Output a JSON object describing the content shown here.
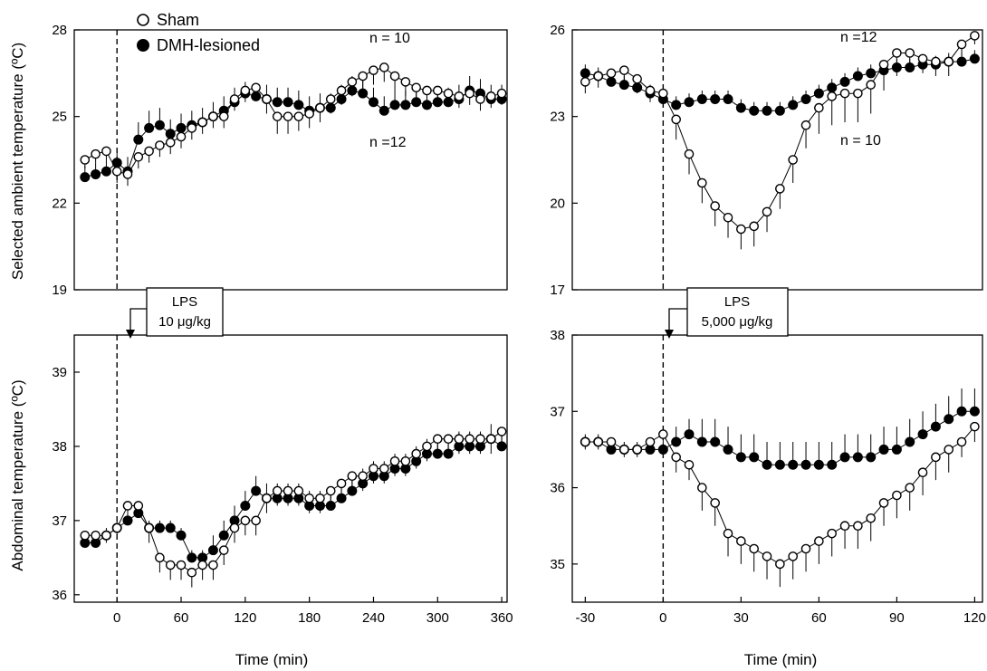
{
  "legend": [
    {
      "label": "Sham",
      "marker": "open-circle"
    },
    {
      "label": "DMH-lesioned",
      "marker": "filled-circle"
    }
  ],
  "colors": {
    "ink": "#000000",
    "background": "#ffffff"
  },
  "chart_data": [
    {
      "id": "top-left",
      "type": "line",
      "ylabel": "Selected ambient temperature (ºC)",
      "xlabel": "",
      "ylim": [
        19,
        28
      ],
      "yticks": [
        19,
        22,
        25,
        28
      ],
      "xlim": [
        -40,
        365
      ],
      "xticks": [],
      "vline_x": 0,
      "annotations": [
        {
          "text": "n = 10",
          "x": 242,
          "y": 27.5
        },
        {
          "text": "n =12",
          "x": 242,
          "y": 23.9
        }
      ],
      "series": [
        {
          "name": "Sham",
          "marker": "open",
          "x": [
            -30,
            -20,
            -10,
            0,
            10,
            20,
            30,
            40,
            50,
            60,
            70,
            80,
            90,
            100,
            110,
            120,
            130,
            140,
            150,
            160,
            170,
            180,
            190,
            200,
            210,
            220,
            230,
            240,
            250,
            260,
            270,
            280,
            290,
            300,
            310,
            320,
            330,
            340,
            350,
            360
          ],
          "y": [
            23.5,
            23.7,
            23.8,
            23.1,
            23.0,
            23.6,
            23.8,
            24.0,
            24.1,
            24.3,
            24.6,
            24.8,
            25.0,
            25.0,
            25.6,
            25.9,
            26.0,
            25.6,
            25.0,
            25.0,
            25.0,
            25.1,
            25.3,
            25.6,
            25.9,
            26.2,
            26.4,
            26.6,
            26.7,
            26.4,
            26.2,
            26.0,
            25.9,
            25.9,
            25.8,
            25.7,
            25.8,
            25.6,
            25.7,
            25.8
          ],
          "err": [
            0.3,
            0.3,
            0.3,
            0.4,
            0.4,
            0.4,
            0.4,
            0.4,
            0.4,
            0.4,
            0.4,
            0.4,
            0.4,
            0.4,
            0.4,
            0.4,
            0.4,
            0.5,
            0.6,
            0.6,
            0.5,
            0.5,
            0.5,
            0.5,
            0.5,
            0.5,
            0.5,
            0.5,
            0.5,
            0.5,
            0.5,
            0.5,
            0.4,
            0.4,
            0.4,
            0.4,
            0.4,
            0.4,
            0.4,
            0.4
          ]
        },
        {
          "name": "DMH-lesioned",
          "marker": "filled",
          "x": [
            -30,
            -20,
            -10,
            0,
            10,
            20,
            30,
            40,
            50,
            60,
            70,
            80,
            90,
            100,
            110,
            120,
            130,
            140,
            150,
            160,
            170,
            180,
            190,
            200,
            210,
            220,
            230,
            240,
            250,
            260,
            270,
            280,
            290,
            300,
            310,
            320,
            330,
            340,
            350,
            360
          ],
          "y": [
            22.9,
            23.0,
            23.1,
            23.4,
            23.1,
            24.2,
            24.6,
            24.7,
            24.4,
            24.6,
            24.7,
            24.8,
            25.0,
            25.2,
            25.5,
            25.8,
            25.7,
            25.6,
            25.5,
            25.5,
            25.4,
            25.2,
            25.3,
            25.3,
            25.6,
            25.9,
            25.8,
            25.5,
            25.2,
            25.4,
            25.4,
            25.5,
            25.4,
            25.5,
            25.5,
            25.6,
            25.9,
            25.8,
            25.6,
            25.6
          ],
          "err": [
            0.4,
            0.4,
            0.4,
            0.4,
            0.5,
            0.6,
            0.6,
            0.6,
            0.5,
            0.5,
            0.5,
            0.5,
            0.5,
            0.5,
            0.5,
            0.4,
            0.4,
            0.5,
            0.5,
            0.5,
            0.5,
            0.5,
            0.5,
            0.5,
            0.5,
            0.5,
            0.5,
            0.5,
            0.5,
            0.5,
            0.5,
            0.5,
            0.5,
            0.5,
            0.5,
            0.5,
            0.5,
            0.5,
            0.5,
            0.5
          ]
        }
      ]
    },
    {
      "id": "top-right",
      "type": "line",
      "ylabel": "",
      "xlabel": "",
      "ylim": [
        17,
        26
      ],
      "yticks": [
        17,
        20,
        23,
        26
      ],
      "xlim": [
        -35,
        123
      ],
      "xticks": [],
      "vline_x": 0,
      "annotations": [
        {
          "text": "n =12",
          "x": 90,
          "y": 25.7
        },
        {
          "text": "n = 10",
          "x": 90,
          "y": 22.2
        }
      ],
      "series": [
        {
          "name": "Sham",
          "marker": "open",
          "x": [
            -30,
            -25,
            -20,
            -15,
            -10,
            -5,
            0,
            5,
            10,
            15,
            20,
            25,
            30,
            35,
            40,
            45,
            50,
            55,
            60,
            65,
            70,
            75,
            80,
            85,
            90,
            95,
            100,
            105,
            110,
            115,
            120
          ],
          "y": [
            24.2,
            24.4,
            24.5,
            24.6,
            24.3,
            23.9,
            23.8,
            22.9,
            21.7,
            20.7,
            19.9,
            19.5,
            19.1,
            19.2,
            19.7,
            20.5,
            21.5,
            22.7,
            23.3,
            23.7,
            23.8,
            23.8,
            24.1,
            24.8,
            25.2,
            25.2,
            25.0,
            24.9,
            24.9,
            25.5,
            25.8
          ],
          "err": [
            0.4,
            0.4,
            0.4,
            0.5,
            0.5,
            0.4,
            0.4,
            0.7,
            0.7,
            0.7,
            0.7,
            0.7,
            0.7,
            0.7,
            0.7,
            0.7,
            0.8,
            0.8,
            0.9,
            1.0,
            1.0,
            1.0,
            1.0,
            0.9,
            0.8,
            0.6,
            0.5,
            0.5,
            0.5,
            0.4,
            0.3
          ]
        },
        {
          "name": "DMH-lesioned",
          "marker": "filled",
          "x": [
            -30,
            -25,
            -20,
            -15,
            -10,
            -5,
            0,
            5,
            10,
            15,
            20,
            25,
            30,
            35,
            40,
            45,
            50,
            55,
            60,
            65,
            70,
            75,
            80,
            85,
            90,
            95,
            100,
            105,
            110,
            115,
            120
          ],
          "y": [
            24.5,
            24.4,
            24.2,
            24.1,
            24.0,
            23.8,
            23.6,
            23.4,
            23.5,
            23.6,
            23.6,
            23.6,
            23.3,
            23.2,
            23.2,
            23.2,
            23.4,
            23.6,
            23.8,
            24.0,
            24.2,
            24.4,
            24.5,
            24.6,
            24.7,
            24.7,
            24.8,
            24.8,
            24.9,
            24.9,
            25.0
          ],
          "err": [
            0.3,
            0.3,
            0.3,
            0.3,
            0.3,
            0.3,
            0.3,
            0.3,
            0.3,
            0.3,
            0.3,
            0.3,
            0.3,
            0.3,
            0.3,
            0.3,
            0.3,
            0.3,
            0.3,
            0.3,
            0.3,
            0.3,
            0.3,
            0.3,
            0.3,
            0.3,
            0.3,
            0.3,
            0.3,
            0.3,
            0.3
          ]
        }
      ]
    },
    {
      "id": "bottom-left",
      "type": "line",
      "ylabel": "Abdominal  temperature (ºC)",
      "xlabel": "Time (min)",
      "ylim": [
        35.9,
        39.5
      ],
      "yticks": [
        36,
        37,
        38,
        39
      ],
      "xlim": [
        -40,
        365
      ],
      "xticks": [
        0,
        60,
        120,
        180,
        240,
        300,
        360
      ],
      "vline_x": 0,
      "lps_box": [
        "LPS",
        "10 μg/kg"
      ],
      "series": [
        {
          "name": "Sham",
          "marker": "open",
          "x": [
            -30,
            -20,
            -10,
            0,
            10,
            20,
            30,
            40,
            50,
            60,
            70,
            80,
            90,
            100,
            110,
            120,
            130,
            140,
            150,
            160,
            170,
            180,
            190,
            200,
            210,
            220,
            230,
            240,
            250,
            260,
            270,
            280,
            290,
            300,
            310,
            320,
            330,
            340,
            350,
            360
          ],
          "y": [
            36.8,
            36.8,
            36.8,
            36.9,
            37.2,
            37.2,
            36.9,
            36.5,
            36.4,
            36.4,
            36.3,
            36.4,
            36.4,
            36.6,
            36.9,
            37.0,
            37.0,
            37.3,
            37.4,
            37.4,
            37.4,
            37.3,
            37.3,
            37.4,
            37.5,
            37.6,
            37.6,
            37.7,
            37.7,
            37.8,
            37.8,
            37.9,
            38.0,
            38.1,
            38.1,
            38.1,
            38.1,
            38.1,
            38.1,
            38.2
          ],
          "err": [
            0.1,
            0.1,
            0.1,
            0.1,
            0.1,
            0.1,
            0.2,
            0.2,
            0.2,
            0.2,
            0.2,
            0.2,
            0.2,
            0.2,
            0.2,
            0.2,
            0.2,
            0.2,
            0.2,
            0.2,
            0.2,
            0.2,
            0.2,
            0.2,
            0.2,
            0.2,
            0.2,
            0.2,
            0.2,
            0.2,
            0.2,
            0.2,
            0.2,
            0.2,
            0.2,
            0.2,
            0.2,
            0.2,
            0.2,
            0.2
          ]
        },
        {
          "name": "DMH-lesioned",
          "marker": "filled",
          "x": [
            -30,
            -20,
            -10,
            0,
            10,
            20,
            30,
            40,
            50,
            60,
            70,
            80,
            90,
            100,
            110,
            120,
            130,
            140,
            150,
            160,
            170,
            180,
            190,
            200,
            210,
            220,
            230,
            240,
            250,
            260,
            270,
            280,
            290,
            300,
            310,
            320,
            330,
            340,
            350,
            360
          ],
          "y": [
            36.7,
            36.7,
            36.8,
            36.9,
            37.0,
            37.1,
            36.9,
            36.9,
            36.9,
            36.8,
            36.5,
            36.5,
            36.6,
            36.8,
            37.0,
            37.2,
            37.4,
            37.3,
            37.3,
            37.3,
            37.3,
            37.2,
            37.2,
            37.2,
            37.3,
            37.4,
            37.5,
            37.6,
            37.6,
            37.7,
            37.7,
            37.8,
            37.9,
            37.9,
            37.9,
            38.0,
            38.0,
            38.0,
            38.1,
            38.0
          ],
          "err": [
            0.1,
            0.1,
            0.1,
            0.1,
            0.1,
            0.1,
            0.1,
            0.1,
            0.1,
            0.1,
            0.1,
            0.1,
            0.2,
            0.2,
            0.2,
            0.2,
            0.2,
            0.2,
            0.2,
            0.2,
            0.2,
            0.2,
            0.2,
            0.2,
            0.2,
            0.2,
            0.2,
            0.2,
            0.2,
            0.2,
            0.2,
            0.2,
            0.2,
            0.2,
            0.2,
            0.2,
            0.2,
            0.2,
            0.2,
            0.2
          ]
        }
      ]
    },
    {
      "id": "bottom-right",
      "type": "line",
      "ylabel": "",
      "xlabel": "Time (min)",
      "ylim": [
        34.5,
        38
      ],
      "yticks": [
        35,
        36,
        37,
        38
      ],
      "xlim": [
        -35,
        123
      ],
      "xticks": [
        -30,
        0,
        30,
        60,
        90,
        120
      ],
      "vline_x": 0,
      "lps_box": [
        "LPS",
        "5,000 μg/kg"
      ],
      "series": [
        {
          "name": "Sham",
          "marker": "open",
          "x": [
            -30,
            -25,
            -20,
            -15,
            -10,
            -5,
            0,
            5,
            10,
            15,
            20,
            25,
            30,
            35,
            40,
            45,
            50,
            55,
            60,
            65,
            70,
            75,
            80,
            85,
            90,
            95,
            100,
            105,
            110,
            115,
            120
          ],
          "y": [
            36.6,
            36.6,
            36.6,
            36.5,
            36.5,
            36.6,
            36.7,
            36.4,
            36.3,
            36.0,
            35.8,
            35.4,
            35.3,
            35.2,
            35.1,
            35.0,
            35.1,
            35.2,
            35.3,
            35.4,
            35.5,
            35.5,
            35.6,
            35.8,
            35.9,
            36.0,
            36.2,
            36.4,
            36.5,
            36.6,
            36.8
          ],
          "err": [
            0.1,
            0.1,
            0.1,
            0.1,
            0.1,
            0.1,
            0.1,
            0.2,
            0.2,
            0.3,
            0.3,
            0.3,
            0.3,
            0.3,
            0.3,
            0.3,
            0.3,
            0.3,
            0.3,
            0.3,
            0.3,
            0.3,
            0.3,
            0.3,
            0.3,
            0.3,
            0.3,
            0.3,
            0.3,
            0.2,
            0.2
          ]
        },
        {
          "name": "DMH-lesioned",
          "marker": "filled",
          "x": [
            -30,
            -25,
            -20,
            -15,
            -10,
            -5,
            0,
            5,
            10,
            15,
            20,
            25,
            30,
            35,
            40,
            45,
            50,
            55,
            60,
            65,
            70,
            75,
            80,
            85,
            90,
            95,
            100,
            105,
            110,
            115,
            120
          ],
          "y": [
            36.6,
            36.6,
            36.5,
            36.5,
            36.5,
            36.5,
            36.5,
            36.6,
            36.7,
            36.6,
            36.6,
            36.5,
            36.4,
            36.4,
            36.3,
            36.3,
            36.3,
            36.3,
            36.3,
            36.3,
            36.4,
            36.4,
            36.4,
            36.5,
            36.5,
            36.6,
            36.7,
            36.8,
            36.9,
            37.0,
            37.0
          ],
          "err": [
            0.1,
            0.1,
            0.1,
            0.1,
            0.1,
            0.1,
            0.1,
            0.2,
            0.2,
            0.3,
            0.3,
            0.3,
            0.3,
            0.3,
            0.3,
            0.3,
            0.3,
            0.3,
            0.3,
            0.3,
            0.3,
            0.3,
            0.3,
            0.3,
            0.3,
            0.3,
            0.3,
            0.3,
            0.3,
            0.3,
            0.3
          ]
        }
      ]
    }
  ]
}
